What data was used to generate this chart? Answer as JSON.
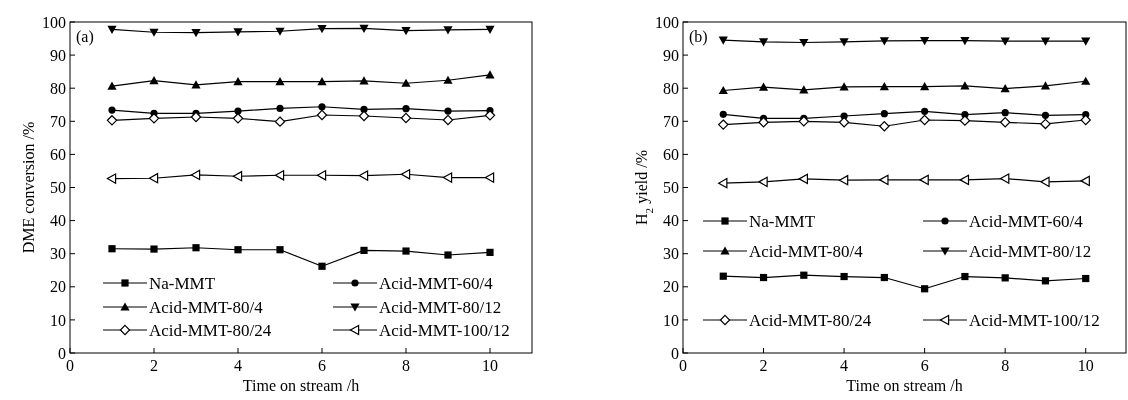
{
  "chart_data": [
    {
      "type": "line",
      "xlabel": "Time on stream /h",
      "ylabel": "DME conversion /%",
      "annotations": [
        "(a)"
      ],
      "x": [
        1,
        2,
        3,
        4,
        5,
        6,
        7,
        8,
        9,
        10
      ],
      "xlim": [
        0,
        11
      ],
      "xticks": [
        0,
        2,
        4,
        6,
        8,
        10
      ],
      "ylim": [
        0,
        100
      ],
      "yticks": [
        0,
        10,
        20,
        30,
        40,
        50,
        60,
        70,
        80,
        90,
        100
      ],
      "legend": "bottom",
      "grid": false,
      "line_style": "solid",
      "series": [
        {
          "name": "Na-MMT",
          "color": "#000000",
          "marker": "square",
          "values": [
            31.5,
            31.4,
            31.8,
            31.2,
            31.2,
            26.2,
            31.0,
            30.8,
            29.6,
            30.4
          ]
        },
        {
          "name": "Acid-MMT-60/4",
          "color": "#000000",
          "marker": "circle",
          "values": [
            73.4,
            72.4,
            72.4,
            73.1,
            73.9,
            74.4,
            73.6,
            73.8,
            73.1,
            73.2
          ]
        },
        {
          "name": "Acid-MMT-80/4",
          "color": "#000000",
          "marker": "triangle",
          "values": [
            80.6,
            82.3,
            81.0,
            82.0,
            82.0,
            82.0,
            82.2,
            81.5,
            82.4,
            84.0
          ]
        },
        {
          "name": "Acid-MMT-80/12",
          "color": "#000000",
          "marker": "triangle-down",
          "values": [
            97.8,
            96.9,
            96.8,
            97.0,
            97.2,
            98.0,
            98.1,
            97.4,
            97.6,
            97.8
          ]
        },
        {
          "name": "Acid-MMT-80/24",
          "color": "#000000",
          "marker": "diamond-open",
          "values": [
            70.3,
            70.9,
            71.3,
            70.9,
            69.9,
            71.9,
            71.6,
            71.0,
            70.4,
            71.8
          ]
        },
        {
          "name": "Acid-MMT-100/12",
          "color": "#000000",
          "marker": "triangle-left-open",
          "values": [
            52.7,
            52.8,
            53.8,
            53.4,
            53.7,
            53.7,
            53.6,
            54.0,
            53.0,
            53.0
          ]
        }
      ]
    },
    {
      "type": "line",
      "xlabel": "Time on stream /h",
      "ylabel": "H$_{2}$ yield /%",
      "annotations": [
        "(b)"
      ],
      "x": [
        1,
        2,
        3,
        4,
        5,
        6,
        7,
        8,
        9,
        10
      ],
      "xlim": [
        0,
        11
      ],
      "xticks": [
        0,
        2,
        4,
        6,
        8,
        10
      ],
      "ylim": [
        0,
        100
      ],
      "yticks": [
        0,
        10,
        20,
        30,
        40,
        50,
        60,
        70,
        80,
        90,
        100
      ],
      "legend": "bottom",
      "grid": false,
      "line_style": "solid",
      "series": [
        {
          "name": "Na-MMT",
          "color": "#000000",
          "marker": "square",
          "values": [
            23.2,
            22.8,
            23.5,
            23.1,
            22.8,
            19.4,
            23.1,
            22.7,
            21.8,
            22.5
          ]
        },
        {
          "name": "Acid-MMT-60/4",
          "color": "#000000",
          "marker": "circle",
          "values": [
            72.1,
            70.9,
            70.9,
            71.6,
            72.3,
            73.0,
            72.0,
            72.6,
            71.8,
            72.0
          ]
        },
        {
          "name": "Acid-MMT-80/4",
          "color": "#000000",
          "marker": "triangle",
          "values": [
            79.3,
            80.3,
            79.5,
            80.4,
            80.5,
            80.5,
            80.7,
            79.9,
            80.7,
            82.1
          ]
        },
        {
          "name": "Acid-MMT-80/12",
          "color": "#000000",
          "marker": "triangle-down",
          "values": [
            94.5,
            94.0,
            93.8,
            94.0,
            94.3,
            94.4,
            94.4,
            94.2,
            94.2,
            94.2
          ]
        },
        {
          "name": "Acid-MMT-80/24",
          "color": "#000000",
          "marker": "diamond-open",
          "values": [
            69.0,
            69.7,
            70.0,
            69.7,
            68.5,
            70.4,
            70.2,
            69.7,
            69.2,
            70.4
          ]
        },
        {
          "name": "Acid-MMT-100/12",
          "color": "#000000",
          "marker": "triangle-left-open",
          "values": [
            51.3,
            51.7,
            52.6,
            52.2,
            52.3,
            52.3,
            52.3,
            52.7,
            51.7,
            52.0
          ]
        }
      ]
    }
  ]
}
